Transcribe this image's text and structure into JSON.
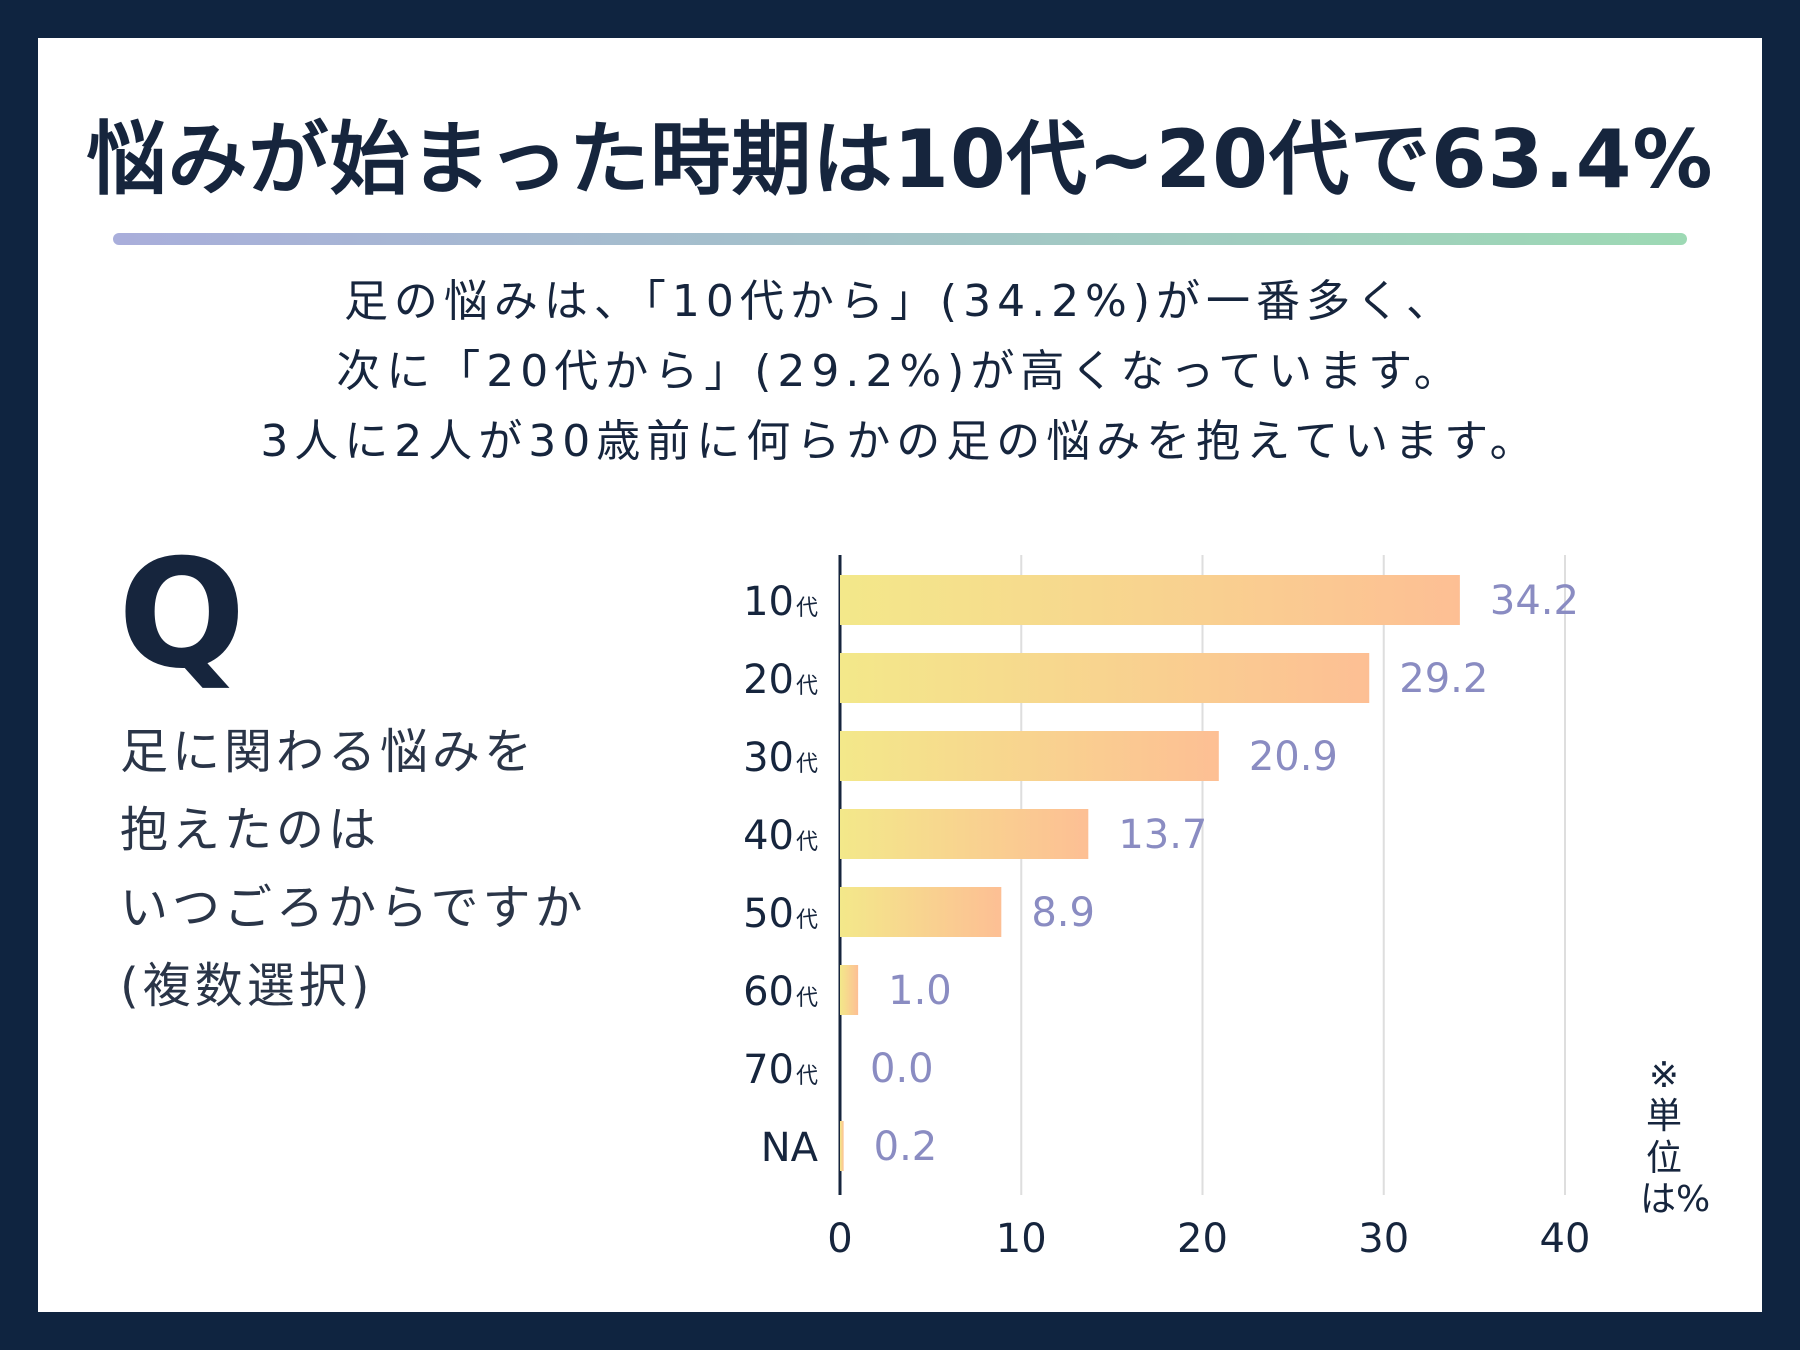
{
  "header": {
    "title": "悩みが始まった時期は10代~20代で63.4%",
    "description_lines": [
      "足の悩みは、「10代から」(34.2%)が一番多く、",
      "次に「20代から」(29.2%)が高くなっています。",
      "3人に2人が30歳前に何らかの足の悩みを抱えています。"
    ]
  },
  "question": {
    "mark": "Q",
    "lines": [
      "足に関わる悩みを",
      "抱えたのは",
      "いつごろからですか",
      "(複数選択)"
    ]
  },
  "unit_note": "※単位は%",
  "colors": {
    "background": "#0f2440",
    "bar_start": "#f3e88a",
    "bar_end": "#fdbf94",
    "value_label": "#8a8cc2",
    "divider_start": "#a9aedb",
    "divider_end": "#9dd9b4"
  },
  "chart_data": {
    "type": "bar",
    "orientation": "horizontal",
    "categories": [
      {
        "num": "10",
        "suffix": "代"
      },
      {
        "num": "20",
        "suffix": "代"
      },
      {
        "num": "30",
        "suffix": "代"
      },
      {
        "num": "40",
        "suffix": "代"
      },
      {
        "num": "50",
        "suffix": "代"
      },
      {
        "num": "60",
        "suffix": "代"
      },
      {
        "num": "70",
        "suffix": "代"
      },
      {
        "num": "NA",
        "suffix": ""
      }
    ],
    "values": [
      34.2,
      29.2,
      20.9,
      13.7,
      8.9,
      1.0,
      0.0,
      0.2
    ],
    "value_labels": [
      "34.2",
      "29.2",
      "20.9",
      "13.7",
      "8.9",
      "1.0",
      "0.0",
      "0.2"
    ],
    "xlim": [
      0,
      40
    ],
    "xticks": [
      0,
      10,
      20,
      30,
      40
    ],
    "grid": true
  }
}
